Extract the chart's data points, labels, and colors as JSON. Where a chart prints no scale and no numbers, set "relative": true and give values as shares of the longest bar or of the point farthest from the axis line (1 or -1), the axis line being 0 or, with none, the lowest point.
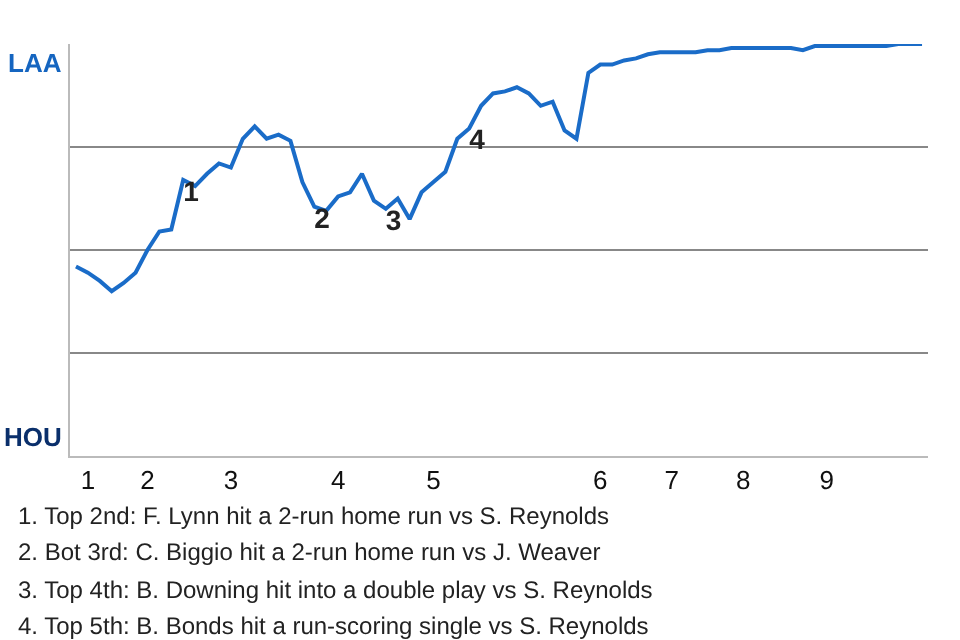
{
  "chart_data": {
    "type": "line",
    "categories": [
      null,
      "1",
      null,
      null,
      null,
      null,
      "2",
      null,
      null,
      null,
      null,
      null,
      null,
      "3",
      null,
      null,
      null,
      null,
      null,
      null,
      null,
      null,
      "4",
      null,
      null,
      null,
      null,
      null,
      null,
      null,
      "5",
      null,
      null,
      null,
      null,
      null,
      null,
      null,
      null,
      null,
      null,
      null,
      null,
      null,
      "6",
      null,
      null,
      null,
      null,
      null,
      "7",
      null,
      null,
      null,
      null,
      null,
      "8",
      null,
      null,
      null,
      null,
      null,
      null,
      "9",
      null,
      null,
      null,
      null,
      null,
      null,
      null,
      null
    ],
    "values": [
      0.46,
      0.445,
      0.425,
      0.4,
      0.42,
      0.445,
      0.5,
      0.545,
      0.55,
      0.67,
      0.655,
      0.685,
      0.71,
      0.7,
      0.77,
      0.8,
      0.77,
      0.78,
      0.765,
      0.665,
      0.605,
      0.595,
      0.63,
      0.64,
      0.685,
      0.62,
      0.6,
      0.625,
      0.575,
      0.64,
      0.665,
      0.69,
      0.77,
      0.795,
      0.85,
      0.88,
      0.885,
      0.895,
      0.88,
      0.85,
      0.86,
      0.79,
      0.77,
      0.93,
      0.95,
      0.95,
      0.96,
      0.965,
      0.975,
      0.98,
      0.98,
      0.98,
      0.98,
      0.985,
      0.985,
      0.99,
      0.99,
      0.99,
      0.99,
      0.99,
      0.99,
      0.985,
      0.995,
      0.995,
      0.995,
      0.995,
      0.995,
      0.995,
      0.995,
      1,
      1,
      1
    ],
    "color": "#1a6cc8",
    "relative": true,
    "grid": "y",
    "annotations": [
      {
        "text": "1",
        "y": 0.67
      },
      {
        "text": "2",
        "y": 0.605
      },
      {
        "text": "3",
        "y": 0.6
      },
      {
        "text": "4",
        "y": 0.795
      },
      "LAA",
      "HOU",
      "1. Top 2nd: F. Lynn hit a 2-run home run vs S. Reynolds",
      "2. Bot 3rd: C. Biggio hit a 2-run home run vs J. Weaver",
      "3. Top 4th: B. Downing hit into a double play vs S. Reynolds",
      "4. Top 5th: B. Bonds hit a run-scoring single vs S. Reynolds"
    ]
  }
}
